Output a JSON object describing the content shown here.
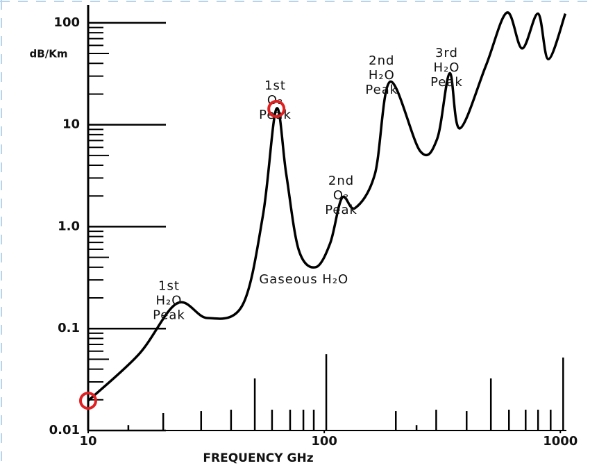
{
  "chart_data": {
    "type": "line",
    "log_x": true,
    "log_y": true,
    "x_label": "FREQUENCY GHz",
    "y_label": "dB/Km",
    "xlim": [
      10,
      1300
    ],
    "ylim": [
      0.01,
      150
    ],
    "xticks": [
      10,
      100,
      1000
    ],
    "yticks": [
      0.01,
      0.1,
      {
        "value": 1,
        "label": "1.0"
      },
      10,
      100
    ],
    "y_minor_ticks": true,
    "series": [
      {
        "color": "#000000",
        "x": [
          10,
          16.4,
          23.8,
          32,
          45,
          55,
          62.7,
          69,
          78,
          92,
          106,
          119,
          135,
          164,
          190,
          255,
          301,
          340,
          375,
          484,
          594,
          689,
          805,
          890,
          1050
        ],
        "values": [
          0.0196,
          0.056,
          0.177,
          0.127,
          0.169,
          1.29,
          14.3,
          3.3,
          0.59,
          0.4,
          0.69,
          1.92,
          1.52,
          3.3,
          26.4,
          5.5,
          7.3,
          32,
          9.2,
          38,
          126,
          56,
          123,
          44,
          123
        ]
      },
      {
        "color": "#000000",
        "style": "sticks",
        "x": [
          14.8,
          20.8,
          30.1,
          40.3,
          50.8,
          60.1,
          71.7,
          81.6,
          90.3,
          102,
          201,
          246,
          298,
          401,
          508,
          606,
          713,
          805,
          910,
          1028
        ],
        "values": [
          0.0113,
          0.0148,
          0.0155,
          0.016,
          0.0324,
          0.016,
          0.016,
          0.016,
          0.016,
          0.056,
          0.0155,
          0.0113,
          0.016,
          0.0155,
          0.0324,
          0.016,
          0.016,
          0.016,
          0.016,
          0.052
        ]
      }
    ],
    "annotations": [
      {
        "x": 22,
        "y": 0.26,
        "lines": [
          "1st",
          "H₂O",
          "Peak"
        ]
      },
      {
        "x": 62,
        "y": 24,
        "lines": [
          "1st",
          "O₂",
          "Peak"
        ]
      },
      {
        "x": 118,
        "y": 2.8,
        "lines": [
          "2nd",
          "O₂",
          "Peak"
        ]
      },
      {
        "x": 82,
        "y": 0.3,
        "lines": [
          "Gaseous H₂O"
        ]
      },
      {
        "x": 175,
        "y": 42,
        "lines": [
          "2nd",
          "H₂O",
          "Peak"
        ]
      },
      {
        "x": 330,
        "y": 50,
        "lines": [
          "3rd",
          "H₂O",
          "Peak"
        ]
      }
    ],
    "highlights": [
      {
        "x": 10,
        "y": 0.0196,
        "color": "#e02020"
      },
      {
        "x": 62.7,
        "y": 14.3,
        "color": "#e02020"
      }
    ]
  }
}
